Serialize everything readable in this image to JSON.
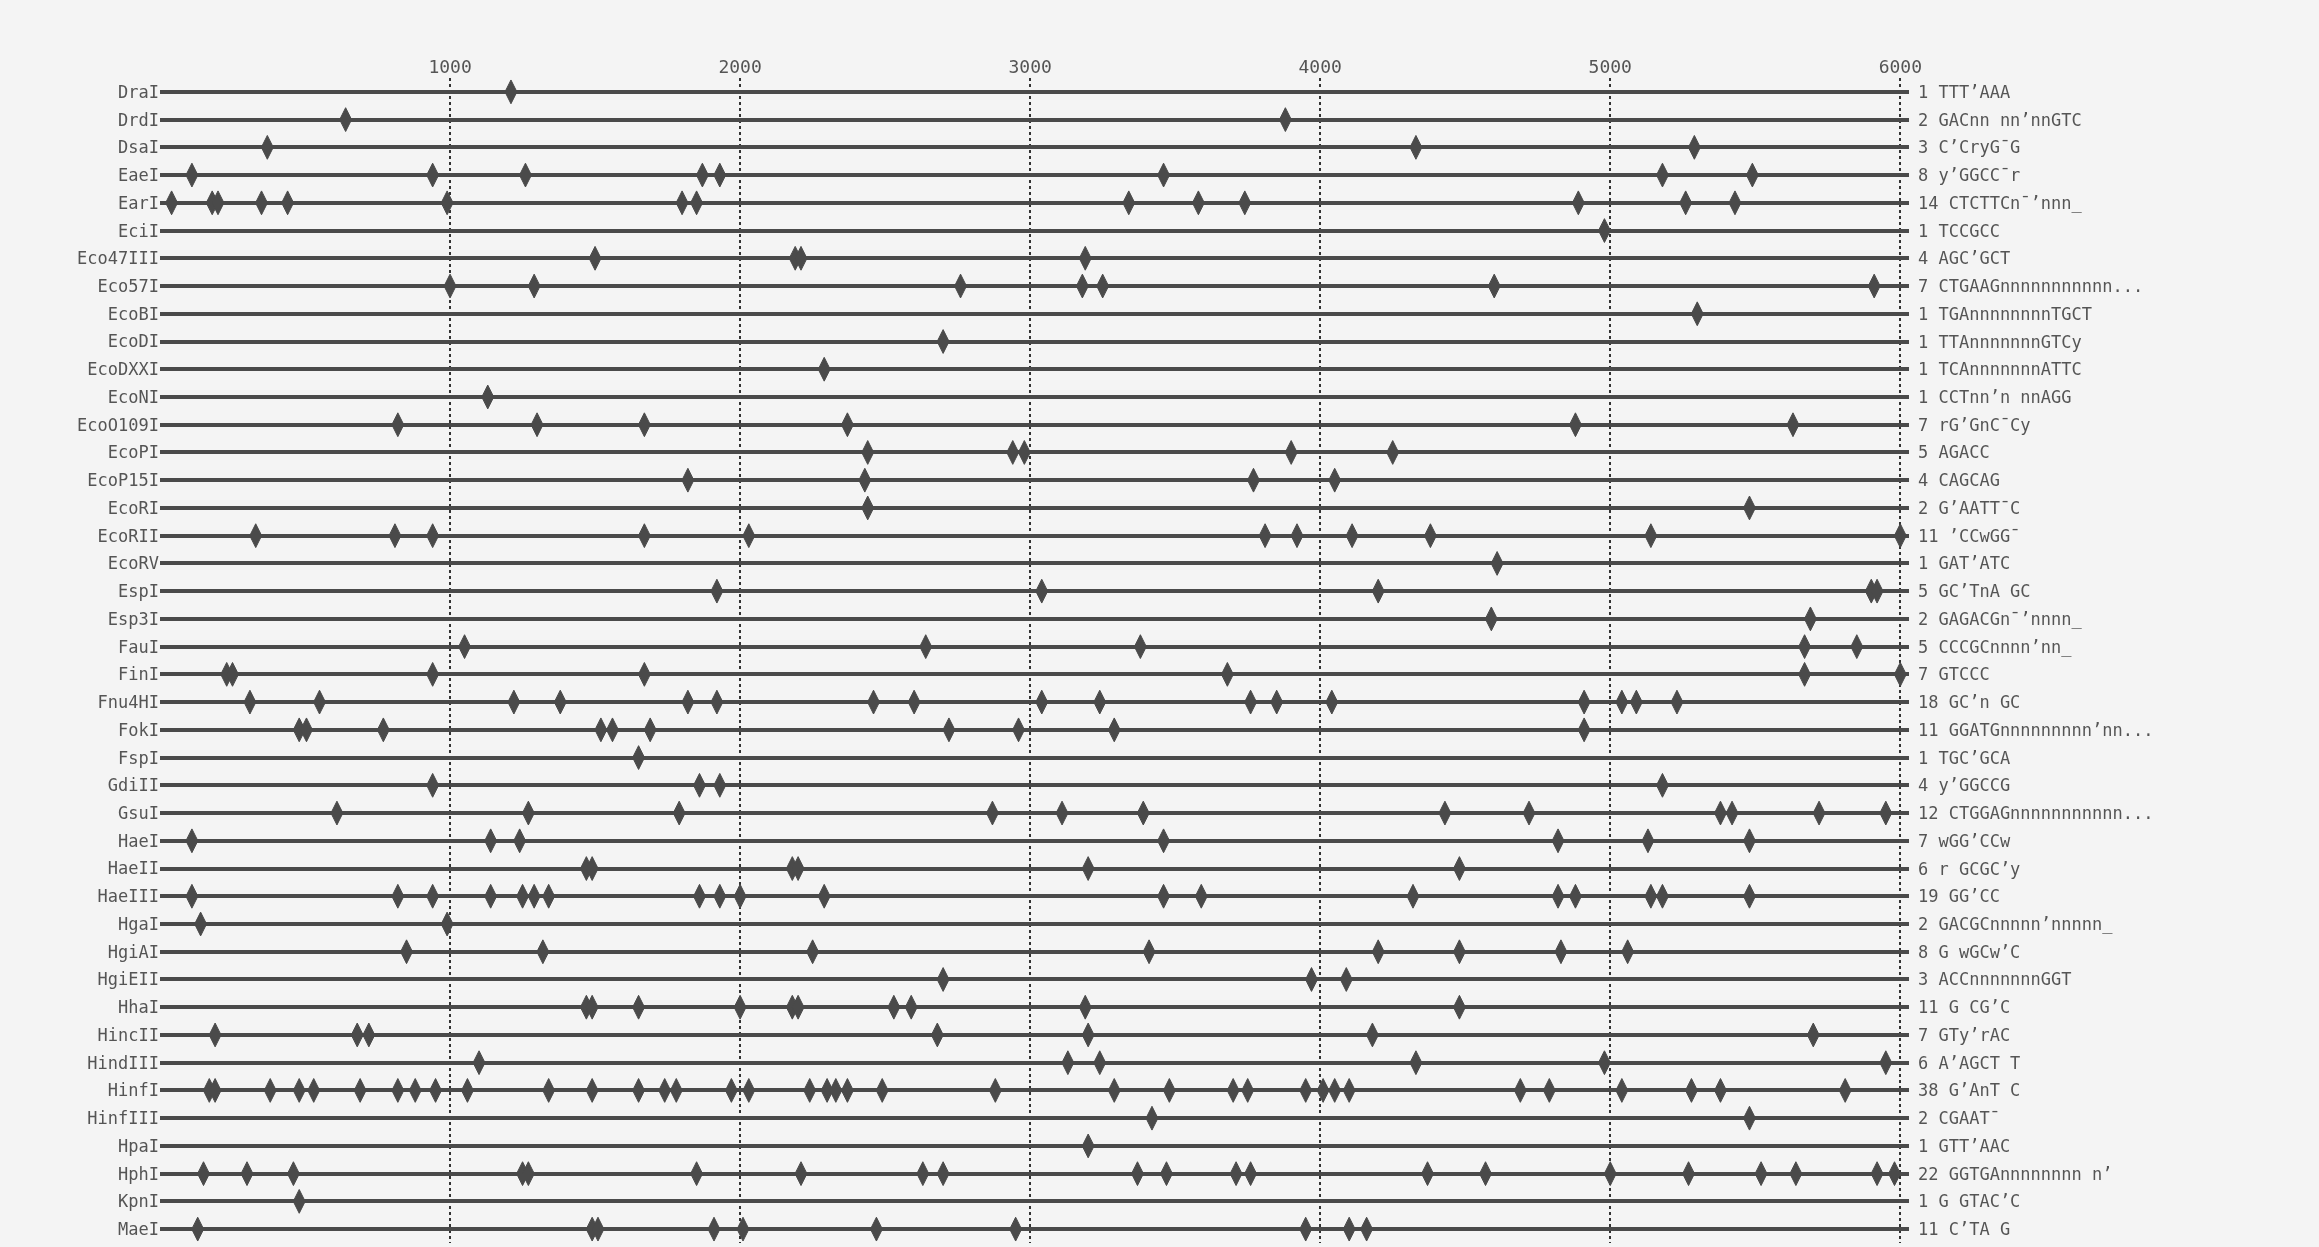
{
  "chart_data": {
    "type": "scatter",
    "orientation": "horizontal",
    "marker": "diamond",
    "color": "#4a4a4a",
    "grid": true,
    "xlim": [
      0,
      6030
    ],
    "xticks": [
      1000,
      2000,
      3000,
      4000,
      5000,
      6000
    ],
    "categories": [
      "DraI",
      "DrdI",
      "DsaI",
      "EaeI",
      "EarI",
      "EciI",
      "Eco47III",
      "Eco57I",
      "EcoBI",
      "EcoDI",
      "EcoDXXI",
      "EcoNI",
      "EcoO109I",
      "EcoPI",
      "EcoP15I",
      "EcoRI",
      "EcoRII",
      "EcoRV",
      "EspI",
      "Esp3I",
      "FauI",
      "FinI",
      "Fnu4HI",
      "FokI",
      "FspI",
      "GdiII",
      "GsuI",
      "HaeI",
      "HaeII",
      "HaeIII",
      "HgaI",
      "HgiAI",
      "HgiEII",
      "HhaI",
      "HincII",
      "HindIII",
      "HinfI",
      "HinfIII",
      "HpaI",
      "HphI",
      "KpnI",
      "MaeI"
    ],
    "y2_categories": [
      "1 TTT’AAA",
      "2 GACnn nn’nnGTC",
      "3 C’CryG¯G",
      "8 y’GGCC¯r",
      "14 CTCTTCn¯’nnn_",
      "1 TCCGCC",
      "4 AGC’GCT",
      "7 CTGAAGnnnnnnnnnnn...",
      "1 TGAnnnnnnnnTGCT",
      "1 TTAnnnnnnnGTCy",
      "1 TCAnnnnnnnATTC",
      "1 CCTnn’n nnAGG",
      "7 rG’GnC¯Cy",
      "5 AGACC",
      "4 CAGCAG",
      "2 G’AATT¯C",
      "11 ’CCwGG¯",
      "1 GAT’ATC",
      "5 GC’TnA GC",
      "2 GAGACGn¯’nnnn_",
      "5 CCCGCnnnn’nn_",
      "7 GTCCC",
      "18 GC’n GC",
      "11 GGATGnnnnnnnnn’nn...",
      "1 TGC’GCA",
      "4 y’GGCCG",
      "12 CTGGAGnnnnnnnnnnn...",
      "7 wGG’CCw",
      "6 r GCGC’y",
      "19 GG’CC",
      "2 GACGCnnnnn’nnnnn_",
      "8 G wGCw’C",
      "3 ACCnnnnnnnGGT",
      "11 G CG’C",
      "7 GTy’rAC",
      "6 A’AGCT T",
      "38 G’AnT C",
      "2 CGAAT¯",
      "1 GTT’AAC",
      "22 GGTGAnnnnnnnn n’",
      "1 G GTAC’C",
      "11 C’TA G"
    ],
    "series": [
      {
        "values": [
          1210,
          640,
          370,
          110,
          40,
          4980,
          1500,
          1000,
          5300,
          2700,
          2290,
          1130,
          820,
          2440,
          1820,
          2440,
          330,
          4610,
          1920,
          4590,
          1050,
          230,
          310,
          480,
          1650,
          940,
          610,
          110,
          1470,
          110,
          140,
          850,
          2700,
          1470,
          190,
          1100,
          170,
          3420,
          3200,
          150,
          480,
          130
        ]
      },
      {
        "values": [
          null,
          3880,
          4330,
          940,
          180,
          null,
          2190,
          1290,
          null,
          null,
          null,
          null,
          1300,
          2940,
          2430,
          5480,
          810,
          null,
          3040,
          5690,
          2640,
          250,
          550,
          505,
          null,
          1860,
          1270,
          1140,
          1490,
          820,
          990,
          1320,
          3970,
          1490,
          680,
          3130,
          190,
          5480,
          null,
          300,
          null,
          1490
        ]
      },
      {
        "values": [
          null,
          null,
          5290,
          1260,
          200,
          null,
          2210,
          2760,
          null,
          null,
          null,
          null,
          1670,
          2980,
          3770,
          null,
          940,
          null,
          4200,
          null,
          3380,
          940,
          1220,
          770,
          null,
          1930,
          1790,
          1240,
          2180,
          940,
          null,
          2250,
          4090,
          1650,
          720,
          3240,
          380,
          null,
          null,
          460,
          null,
          1510
        ]
      },
      {
        "values": [
          null,
          null,
          null,
          1870,
          350,
          null,
          3190,
          3180,
          null,
          null,
          null,
          null,
          2370,
          3900,
          4050,
          null,
          1670,
          null,
          5900,
          null,
          5670,
          1670,
          1380,
          1520,
          null,
          5180,
          2870,
          3460,
          2200,
          1140,
          null,
          3410,
          null,
          2000,
          2680,
          4330,
          480,
          null,
          null,
          1250,
          null,
          1910
        ]
      },
      {
        "values": [
          null,
          null,
          null,
          1930,
          440,
          null,
          null,
          3250,
          null,
          null,
          null,
          null,
          4880,
          4250,
          null,
          null,
          2030,
          null,
          5920,
          null,
          5850,
          3680,
          1820,
          1560,
          null,
          null,
          3110,
          4820,
          3200,
          1250,
          null,
          4200,
          null,
          2180,
          3200,
          4980,
          530,
          null,
          null,
          1270,
          null,
          2010
        ]
      },
      {
        "values": [
          null,
          null,
          null,
          3460,
          990,
          null,
          null,
          4600,
          null,
          null,
          null,
          null,
          5630,
          null,
          null,
          null,
          3810,
          null,
          null,
          null,
          null,
          5670,
          1920,
          1690,
          null,
          null,
          3390,
          5130,
          4480,
          1290,
          null,
          4480,
          null,
          2200,
          4180,
          5950,
          690,
          null,
          null,
          1850,
          null,
          2470
        ]
      },
      {
        "values": [
          null,
          null,
          null,
          5180,
          1800,
          null,
          null,
          5910,
          null,
          null,
          null,
          null,
          null,
          null,
          null,
          null,
          3920,
          null,
          null,
          null,
          null,
          6000,
          2460,
          2720,
          null,
          null,
          4430,
          5480,
          null,
          1340,
          null,
          4830,
          null,
          2530,
          5700,
          null,
          820,
          null,
          null,
          2210,
          null,
          2950
        ]
      },
      {
        "values": [
          null,
          null,
          null,
          5490,
          1850,
          null,
          null,
          null,
          null,
          null,
          null,
          null,
          null,
          null,
          null,
          null,
          4110,
          null,
          null,
          null,
          null,
          null,
          2600,
          2960,
          null,
          null,
          4720,
          null,
          null,
          1860,
          null,
          5060,
          null,
          2590,
          null,
          null,
          880,
          null,
          null,
          2630,
          null,
          3950
        ]
      },
      {
        "values": [
          null,
          null,
          null,
          null,
          3340,
          null,
          null,
          null,
          null,
          null,
          null,
          null,
          null,
          null,
          null,
          null,
          4380,
          null,
          null,
          null,
          null,
          null,
          3040,
          3290,
          null,
          null,
          5380,
          null,
          null,
          1930,
          null,
          null,
          null,
          3190,
          null,
          null,
          950,
          null,
          null,
          2700,
          null,
          4100
        ]
      },
      {
        "values": [
          null,
          null,
          null,
          null,
          3580,
          null,
          null,
          null,
          null,
          null,
          null,
          null,
          null,
          null,
          null,
          null,
          5140,
          null,
          null,
          null,
          null,
          null,
          3240,
          4910,
          null,
          null,
          5420,
          null,
          null,
          2000,
          null,
          null,
          null,
          4480,
          null,
          null,
          1060,
          null,
          null,
          3370,
          null,
          4160
        ]
      },
      {
        "values": [
          null,
          null,
          null,
          null,
          3740,
          null,
          null,
          null,
          null,
          null,
          null,
          null,
          null,
          null,
          null,
          null,
          6000,
          null,
          null,
          null,
          null,
          null,
          3760,
          null,
          null,
          null,
          5720,
          null,
          null,
          2290,
          null,
          null,
          null,
          null,
          null,
          null,
          1340,
          null,
          null,
          3470,
          null,
          null
        ]
      },
      {
        "values": [
          null,
          null,
          null,
          null,
          4890,
          null,
          null,
          null,
          null,
          null,
          null,
          null,
          null,
          null,
          null,
          null,
          null,
          null,
          null,
          null,
          null,
          null,
          3850,
          null,
          null,
          null,
          5950,
          null,
          null,
          3460,
          null,
          null,
          null,
          null,
          null,
          null,
          1490,
          null,
          null,
          3710,
          null,
          null
        ]
      },
      {
        "values": [
          null,
          null,
          null,
          null,
          5260,
          null,
          null,
          null,
          null,
          null,
          null,
          null,
          null,
          null,
          null,
          null,
          null,
          null,
          null,
          null,
          null,
          null,
          4040,
          null,
          null,
          null,
          null,
          null,
          null,
          3590,
          null,
          null,
          null,
          null,
          null,
          null,
          1650,
          null,
          null,
          3760,
          null,
          null
        ]
      },
      {
        "values": [
          null,
          null,
          null,
          null,
          5430,
          null,
          null,
          null,
          null,
          null,
          null,
          null,
          null,
          null,
          null,
          null,
          null,
          null,
          null,
          null,
          null,
          null,
          4910,
          null,
          null,
          null,
          null,
          null,
          null,
          4320,
          null,
          null,
          null,
          null,
          null,
          null,
          1740,
          null,
          null,
          4370,
          null,
          null
        ]
      },
      {
        "values": [
          null,
          null,
          null,
          null,
          null,
          null,
          null,
          null,
          null,
          null,
          null,
          null,
          null,
          null,
          null,
          null,
          null,
          null,
          null,
          null,
          null,
          null,
          5040,
          null,
          null,
          null,
          null,
          null,
          null,
          4820,
          null,
          null,
          null,
          null,
          null,
          null,
          1780,
          null,
          null,
          4570,
          null,
          null
        ]
      },
      {
        "values": [
          null,
          null,
          null,
          null,
          null,
          null,
          null,
          null,
          null,
          null,
          null,
          null,
          null,
          null,
          null,
          null,
          null,
          null,
          null,
          null,
          null,
          null,
          5090,
          null,
          null,
          null,
          null,
          null,
          null,
          4880,
          null,
          null,
          null,
          null,
          null,
          null,
          1970,
          null,
          null,
          5000,
          null,
          null
        ]
      },
      {
        "values": [
          null,
          null,
          null,
          null,
          null,
          null,
          null,
          null,
          null,
          null,
          null,
          null,
          null,
          null,
          null,
          null,
          null,
          null,
          null,
          null,
          null,
          null,
          5230,
          null,
          null,
          null,
          null,
          null,
          null,
          5140,
          null,
          null,
          null,
          null,
          null,
          null,
          2030,
          null,
          null,
          5270,
          null,
          null
        ]
      },
      {
        "values": [
          null,
          null,
          null,
          null,
          null,
          null,
          null,
          null,
          null,
          null,
          null,
          null,
          null,
          null,
          null,
          null,
          null,
          null,
          null,
          null,
          null,
          null,
          null,
          null,
          null,
          null,
          null,
          null,
          null,
          5180,
          null,
          null,
          null,
          null,
          null,
          null,
          2240,
          null,
          null,
          5520,
          null,
          null
        ]
      },
      {
        "values": [
          null,
          null,
          null,
          null,
          null,
          null,
          null,
          null,
          null,
          null,
          null,
          null,
          null,
          null,
          null,
          null,
          null,
          null,
          null,
          null,
          null,
          null,
          null,
          null,
          null,
          null,
          null,
          null,
          null,
          5480,
          null,
          null,
          null,
          null,
          null,
          null,
          2300,
          null,
          null,
          5640,
          null,
          null
        ]
      },
      {
        "values": [
          null,
          null,
          null,
          null,
          null,
          null,
          null,
          null,
          null,
          null,
          null,
          null,
          null,
          null,
          null,
          null,
          null,
          null,
          null,
          null,
          null,
          null,
          null,
          null,
          null,
          null,
          null,
          null,
          null,
          null,
          null,
          null,
          null,
          null,
          null,
          null,
          2330,
          null,
          null,
          5920,
          null,
          null
        ]
      },
      {
        "values": [
          null,
          null,
          null,
          null,
          null,
          null,
          null,
          null,
          null,
          null,
          null,
          null,
          null,
          null,
          null,
          null,
          null,
          null,
          null,
          null,
          null,
          null,
          null,
          null,
          null,
          null,
          null,
          null,
          null,
          null,
          null,
          null,
          null,
          null,
          null,
          null,
          2370,
          null,
          null,
          5980,
          null,
          null
        ]
      },
      {
        "values": [
          null,
          null,
          null,
          null,
          null,
          null,
          null,
          null,
          null,
          null,
          null,
          null,
          null,
          null,
          null,
          null,
          null,
          null,
          null,
          null,
          null,
          null,
          null,
          null,
          null,
          null,
          null,
          null,
          null,
          null,
          null,
          null,
          null,
          null,
          null,
          null,
          2490,
          null,
          null,
          null,
          null,
          null
        ]
      },
      {
        "values": [
          null,
          null,
          null,
          null,
          null,
          null,
          null,
          null,
          null,
          null,
          null,
          null,
          null,
          null,
          null,
          null,
          null,
          null,
          null,
          null,
          null,
          null,
          null,
          null,
          null,
          null,
          null,
          null,
          null,
          null,
          null,
          null,
          null,
          null,
          null,
          null,
          2880,
          null,
          null,
          null,
          null,
          null
        ]
      },
      {
        "values": [
          null,
          null,
          null,
          null,
          null,
          null,
          null,
          null,
          null,
          null,
          null,
          null,
          null,
          null,
          null,
          null,
          null,
          null,
          null,
          null,
          null,
          null,
          null,
          null,
          null,
          null,
          null,
          null,
          null,
          null,
          null,
          null,
          null,
          null,
          null,
          null,
          3290,
          null,
          null,
          null,
          null,
          null
        ]
      },
      {
        "values": [
          null,
          null,
          null,
          null,
          null,
          null,
          null,
          null,
          null,
          null,
          null,
          null,
          null,
          null,
          null,
          null,
          null,
          null,
          null,
          null,
          null,
          null,
          null,
          null,
          null,
          null,
          null,
          null,
          null,
          null,
          null,
          null,
          null,
          null,
          null,
          null,
          3480,
          null,
          null,
          null,
          null,
          null
        ]
      },
      {
        "values": [
          null,
          null,
          null,
          null,
          null,
          null,
          null,
          null,
          null,
          null,
          null,
          null,
          null,
          null,
          null,
          null,
          null,
          null,
          null,
          null,
          null,
          null,
          null,
          null,
          null,
          null,
          null,
          null,
          null,
          null,
          null,
          null,
          null,
          null,
          null,
          null,
          3700,
          null,
          null,
          null,
          null,
          null
        ]
      },
      {
        "values": [
          null,
          null,
          null,
          null,
          null,
          null,
          null,
          null,
          null,
          null,
          null,
          null,
          null,
          null,
          null,
          null,
          null,
          null,
          null,
          null,
          null,
          null,
          null,
          null,
          null,
          null,
          null,
          null,
          null,
          null,
          null,
          null,
          null,
          null,
          null,
          null,
          3750,
          null,
          null,
          null,
          null,
          null
        ]
      },
      {
        "values": [
          null,
          null,
          null,
          null,
          null,
          null,
          null,
          null,
          null,
          null,
          null,
          null,
          null,
          null,
          null,
          null,
          null,
          null,
          null,
          null,
          null,
          null,
          null,
          null,
          null,
          null,
          null,
          null,
          null,
          null,
          null,
          null,
          null,
          null,
          null,
          null,
          3950,
          null,
          null,
          null,
          null,
          null
        ]
      },
      {
        "values": [
          null,
          null,
          null,
          null,
          null,
          null,
          null,
          null,
          null,
          null,
          null,
          null,
          null,
          null,
          null,
          null,
          null,
          null,
          null,
          null,
          null,
          null,
          null,
          null,
          null,
          null,
          null,
          null,
          null,
          null,
          null,
          null,
          null,
          null,
          null,
          null,
          4010,
          null,
          null,
          null,
          null,
          null
        ]
      },
      {
        "values": [
          null,
          null,
          null,
          null,
          null,
          null,
          null,
          null,
          null,
          null,
          null,
          null,
          null,
          null,
          null,
          null,
          null,
          null,
          null,
          null,
          null,
          null,
          null,
          null,
          null,
          null,
          null,
          null,
          null,
          null,
          null,
          null,
          null,
          null,
          null,
          null,
          4050,
          null,
          null,
          null,
          null,
          null
        ]
      },
      {
        "values": [
          null,
          null,
          null,
          null,
          null,
          null,
          null,
          null,
          null,
          null,
          null,
          null,
          null,
          null,
          null,
          null,
          null,
          null,
          null,
          null,
          null,
          null,
          null,
          null,
          null,
          null,
          null,
          null,
          null,
          null,
          null,
          null,
          null,
          null,
          null,
          null,
          4100,
          null,
          null,
          null,
          null,
          null
        ]
      },
      {
        "values": [
          null,
          null,
          null,
          null,
          null,
          null,
          null,
          null,
          null,
          null,
          null,
          null,
          null,
          null,
          null,
          null,
          null,
          null,
          null,
          null,
          null,
          null,
          null,
          null,
          null,
          null,
          null,
          null,
          null,
          null,
          null,
          null,
          null,
          null,
          null,
          null,
          4690,
          null,
          null,
          null,
          null,
          null
        ]
      },
      {
        "values": [
          null,
          null,
          null,
          null,
          null,
          null,
          null,
          null,
          null,
          null,
          null,
          null,
          null,
          null,
          null,
          null,
          null,
          null,
          null,
          null,
          null,
          null,
          null,
          null,
          null,
          null,
          null,
          null,
          null,
          null,
          null,
          null,
          null,
          null,
          null,
          null,
          4790,
          null,
          null,
          null,
          null,
          null
        ]
      },
      {
        "values": [
          null,
          null,
          null,
          null,
          null,
          null,
          null,
          null,
          null,
          null,
          null,
          null,
          null,
          null,
          null,
          null,
          null,
          null,
          null,
          null,
          null,
          null,
          null,
          null,
          null,
          null,
          null,
          null,
          null,
          null,
          null,
          null,
          null,
          null,
          null,
          null,
          5040,
          null,
          null,
          null,
          null,
          null
        ]
      },
      {
        "values": [
          null,
          null,
          null,
          null,
          null,
          null,
          null,
          null,
          null,
          null,
          null,
          null,
          null,
          null,
          null,
          null,
          null,
          null,
          null,
          null,
          null,
          null,
          null,
          null,
          null,
          null,
          null,
          null,
          null,
          null,
          null,
          null,
          null,
          null,
          null,
          null,
          5280,
          null,
          null,
          null,
          null,
          null
        ]
      },
      {
        "values": [
          null,
          null,
          null,
          null,
          null,
          null,
          null,
          null,
          null,
          null,
          null,
          null,
          null,
          null,
          null,
          null,
          null,
          null,
          null,
          null,
          null,
          null,
          null,
          null,
          null,
          null,
          null,
          null,
          null,
          null,
          null,
          null,
          null,
          null,
          null,
          null,
          5380,
          null,
          null,
          null,
          null,
          null
        ]
      },
      {
        "values": [
          null,
          null,
          null,
          null,
          null,
          null,
          null,
          null,
          null,
          null,
          null,
          null,
          null,
          null,
          null,
          null,
          null,
          null,
          null,
          null,
          null,
          null,
          null,
          null,
          null,
          null,
          null,
          null,
          null,
          null,
          null,
          null,
          null,
          null,
          null,
          null,
          5810,
          null,
          null,
          null,
          null,
          null
        ]
      }
    ]
  }
}
